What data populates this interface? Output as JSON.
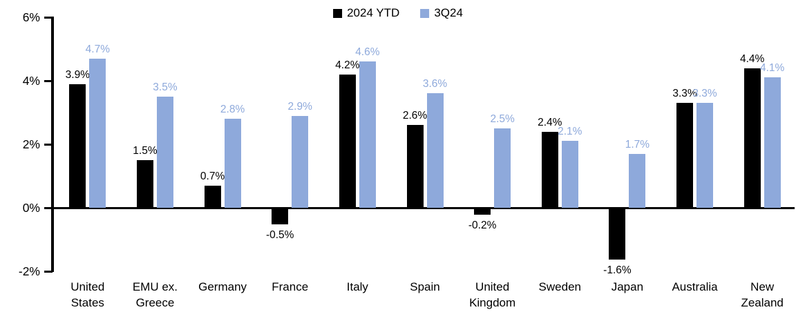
{
  "chart_data": {
    "type": "bar",
    "title": "",
    "xlabel": "",
    "ylabel": "",
    "categories": [
      "United\nStates",
      "EMU ex.\nGreece",
      "Germany",
      "France",
      "Italy",
      "Spain",
      "United\nKingdom",
      "Sweden",
      "Japan",
      "Australia",
      "New\nZealand"
    ],
    "series": [
      {
        "name": "2024 YTD",
        "color": "#000000",
        "label_color": "#000000",
        "values": [
          3.9,
          1.5,
          0.7,
          -0.5,
          4.2,
          2.6,
          -0.2,
          2.4,
          -1.6,
          3.3,
          4.4
        ],
        "labels": [
          "3.9%",
          "1.5%",
          "0.7%",
          "-0.5%",
          "4.2%",
          "2.6%",
          "-0.2%",
          "2.4%",
          "-1.6%",
          "3.3%",
          "4.4%"
        ]
      },
      {
        "name": "3Q24",
        "color": "#8EA9DB",
        "label_color": "#8EA9DB",
        "values": [
          4.7,
          3.5,
          2.8,
          2.9,
          4.6,
          3.6,
          2.5,
          2.1,
          1.7,
          3.3,
          4.1
        ],
        "labels": [
          "4.7%",
          "3.5%",
          "2.8%",
          "2.9%",
          "4.6%",
          "3.6%",
          "2.5%",
          "2.1%",
          "1.7%",
          "3.3%",
          "4.1%"
        ]
      }
    ],
    "ylim": [
      -2,
      6
    ],
    "yticks": [
      {
        "value": 6,
        "label": "6%"
      },
      {
        "value": 4,
        "label": "4%"
      },
      {
        "value": 2,
        "label": "2%"
      },
      {
        "value": 0,
        "label": "0%"
      },
      {
        "value": -2,
        "label": "-2%"
      }
    ],
    "legend_position": "top-center",
    "grid": false,
    "axis_color": "#000000",
    "background_color": "#ffffff"
  }
}
